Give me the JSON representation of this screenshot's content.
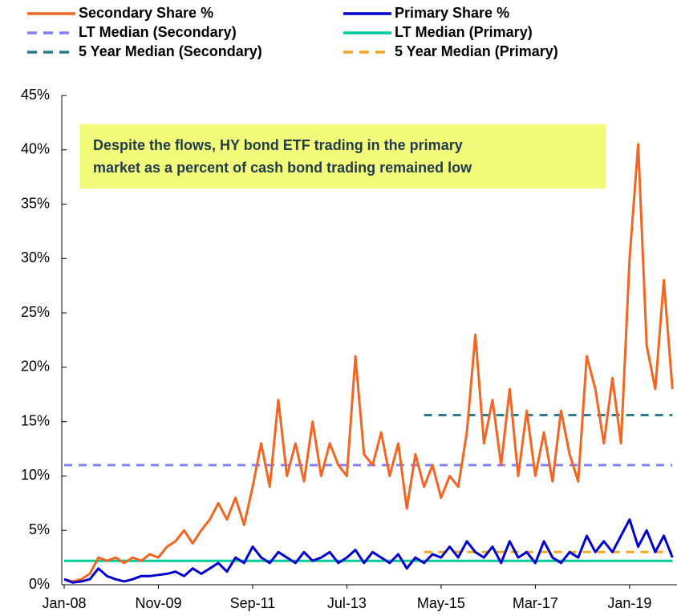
{
  "chart_data": {
    "type": "line",
    "categories": [
      "Jan-08",
      null,
      null,
      null,
      null,
      null,
      null,
      null,
      null,
      null,
      null,
      "Nov-09",
      null,
      null,
      null,
      null,
      null,
      null,
      null,
      null,
      null,
      null,
      "Sep-11",
      null,
      null,
      null,
      null,
      null,
      null,
      null,
      null,
      null,
      null,
      "Jul-13",
      null,
      null,
      null,
      null,
      null,
      null,
      null,
      null,
      null,
      null,
      "May-15",
      null,
      null,
      null,
      null,
      null,
      null,
      null,
      null,
      null,
      null,
      "Mar-17",
      null,
      null,
      null,
      null,
      null,
      null,
      null,
      null,
      null,
      null,
      "Jan-19",
      null,
      null,
      null,
      null,
      null
    ],
    "series": [
      {
        "name": "Secondary Share %",
        "color": "#F26522",
        "dashed": false,
        "values": [
          0.5,
          0.3,
          0.5,
          1.0,
          2.5,
          2.2,
          2.5,
          2.0,
          2.5,
          2.2,
          2.8,
          2.5,
          3.5,
          4.0,
          5.0,
          3.8,
          5.0,
          6.0,
          7.5,
          6.0,
          8.0,
          5.5,
          9.0,
          13.0,
          9.0,
          17.0,
          10.0,
          13.0,
          9.5,
          15.0,
          10.0,
          13.0,
          11.0,
          10.0,
          21.0,
          12.0,
          11.0,
          14.0,
          10.0,
          13.0,
          7.0,
          12.0,
          9.0,
          11.0,
          8.0,
          10.0,
          9.0,
          14.0,
          23.0,
          13.0,
          17.0,
          11.0,
          18.0,
          10.0,
          16.0,
          10.0,
          14.0,
          9.5,
          16.0,
          12.0,
          9.5,
          21.0,
          18.0,
          13.0,
          19.0,
          13.0,
          30.0,
          40.5,
          22.0,
          18.0,
          28.0,
          18.0
        ]
      },
      {
        "name": "Primary Share %",
        "color": "#0000CC",
        "dashed": false,
        "values": [
          0.5,
          0.2,
          0.3,
          0.5,
          1.5,
          0.8,
          0.5,
          0.3,
          0.5,
          0.8,
          0.8,
          0.9,
          1.0,
          1.2,
          0.8,
          1.5,
          1.0,
          1.5,
          2.0,
          1.2,
          2.5,
          2.0,
          3.5,
          2.5,
          2.0,
          3.0,
          2.5,
          2.0,
          3.0,
          2.2,
          2.5,
          3.0,
          2.0,
          2.5,
          3.2,
          2.0,
          3.0,
          2.5,
          2.0,
          2.8,
          1.5,
          2.5,
          2.0,
          2.8,
          2.5,
          3.5,
          2.5,
          4.0,
          3.0,
          2.5,
          3.5,
          2.0,
          4.0,
          2.5,
          3.0,
          2.0,
          4.0,
          2.5,
          2.0,
          3.0,
          2.5,
          4.5,
          3.0,
          4.0,
          3.0,
          4.5,
          6.0,
          3.5,
          5.0,
          3.0,
          4.5,
          2.5
        ]
      },
      {
        "name": "LT Median (Secondary)",
        "color": "#8080FF",
        "dashed": true,
        "values": [
          11,
          11,
          11,
          11,
          11,
          11,
          11,
          11,
          11,
          11,
          11,
          11,
          11,
          11,
          11,
          11,
          11,
          11,
          11,
          11,
          11,
          11,
          11,
          11,
          11,
          11,
          11,
          11,
          11,
          11,
          11,
          11,
          11,
          11,
          11,
          11,
          11,
          11,
          11,
          11,
          11,
          11,
          11,
          11,
          11,
          11,
          11,
          11,
          11,
          11,
          11,
          11,
          11,
          11,
          11,
          11,
          11,
          11,
          11,
          11,
          11,
          11,
          11,
          11,
          11,
          11,
          11,
          11,
          11,
          11,
          11,
          11
        ]
      },
      {
        "name": "LT Median (Primary)",
        "color": "#00CC99",
        "dashed": false,
        "values": [
          2.2,
          2.2,
          2.2,
          2.2,
          2.2,
          2.2,
          2.2,
          2.2,
          2.2,
          2.2,
          2.2,
          2.2,
          2.2,
          2.2,
          2.2,
          2.2,
          2.2,
          2.2,
          2.2,
          2.2,
          2.2,
          2.2,
          2.2,
          2.2,
          2.2,
          2.2,
          2.2,
          2.2,
          2.2,
          2.2,
          2.2,
          2.2,
          2.2,
          2.2,
          2.2,
          2.2,
          2.2,
          2.2,
          2.2,
          2.2,
          2.2,
          2.2,
          2.2,
          2.2,
          2.2,
          2.2,
          2.2,
          2.2,
          2.2,
          2.2,
          2.2,
          2.2,
          2.2,
          2.2,
          2.2,
          2.2,
          2.2,
          2.2,
          2.2,
          2.2,
          2.2,
          2.2,
          2.2,
          2.2,
          2.2,
          2.2,
          2.2,
          2.2,
          2.2,
          2.2,
          2.2,
          2.2
        ]
      },
      {
        "name": "5 Year Median (Secondary)",
        "color": "#287C8C",
        "dashed": true,
        "values": [
          null,
          null,
          null,
          null,
          null,
          null,
          null,
          null,
          null,
          null,
          null,
          null,
          null,
          null,
          null,
          null,
          null,
          null,
          null,
          null,
          null,
          null,
          null,
          null,
          null,
          null,
          null,
          null,
          null,
          null,
          null,
          null,
          null,
          null,
          null,
          null,
          null,
          null,
          null,
          null,
          null,
          null,
          15.6,
          15.6,
          15.6,
          15.6,
          15.6,
          15.6,
          15.6,
          15.6,
          15.6,
          15.6,
          15.6,
          15.6,
          15.6,
          15.6,
          15.6,
          15.6,
          15.6,
          15.6,
          15.6,
          15.6,
          15.6,
          15.6,
          15.6,
          15.6,
          15.6,
          15.6,
          15.6,
          15.6,
          15.6,
          15.6
        ]
      },
      {
        "name": "5 Year Median (Primary)",
        "color": "#F5A623",
        "dashed": true,
        "values": [
          null,
          null,
          null,
          null,
          null,
          null,
          null,
          null,
          null,
          null,
          null,
          null,
          null,
          null,
          null,
          null,
          null,
          null,
          null,
          null,
          null,
          null,
          null,
          null,
          null,
          null,
          null,
          null,
          null,
          null,
          null,
          null,
          null,
          null,
          null,
          null,
          null,
          null,
          null,
          null,
          null,
          null,
          3.0,
          3.0,
          3.0,
          3.0,
          3.0,
          3.0,
          3.0,
          3.0,
          3.0,
          3.0,
          3.0,
          3.0,
          3.0,
          3.0,
          3.0,
          3.0,
          3.0,
          3.0,
          3.0,
          3.0,
          3.0,
          3.0,
          3.0,
          3.0,
          3.0,
          3.0,
          3.0,
          3.0,
          3.0,
          3.0
        ]
      }
    ],
    "ylim": [
      0,
      45
    ],
    "yticks": [
      {
        "value": 0,
        "label": "0%"
      },
      {
        "value": 5,
        "label": "5%"
      },
      {
        "value": 10,
        "label": "10%"
      },
      {
        "value": 15,
        "label": "15%"
      },
      {
        "value": 20,
        "label": "20%"
      },
      {
        "value": 25,
        "label": "25%"
      },
      {
        "value": 30,
        "label": "30%"
      },
      {
        "value": 35,
        "label": "35%"
      },
      {
        "value": 40,
        "label": "40%"
      },
      {
        "value": 45,
        "label": "45%"
      }
    ],
    "annotation": [
      "Despite the flows, HY bond ETF trading in the primary",
      "market as a percent of cash bond trading remained low"
    ]
  }
}
